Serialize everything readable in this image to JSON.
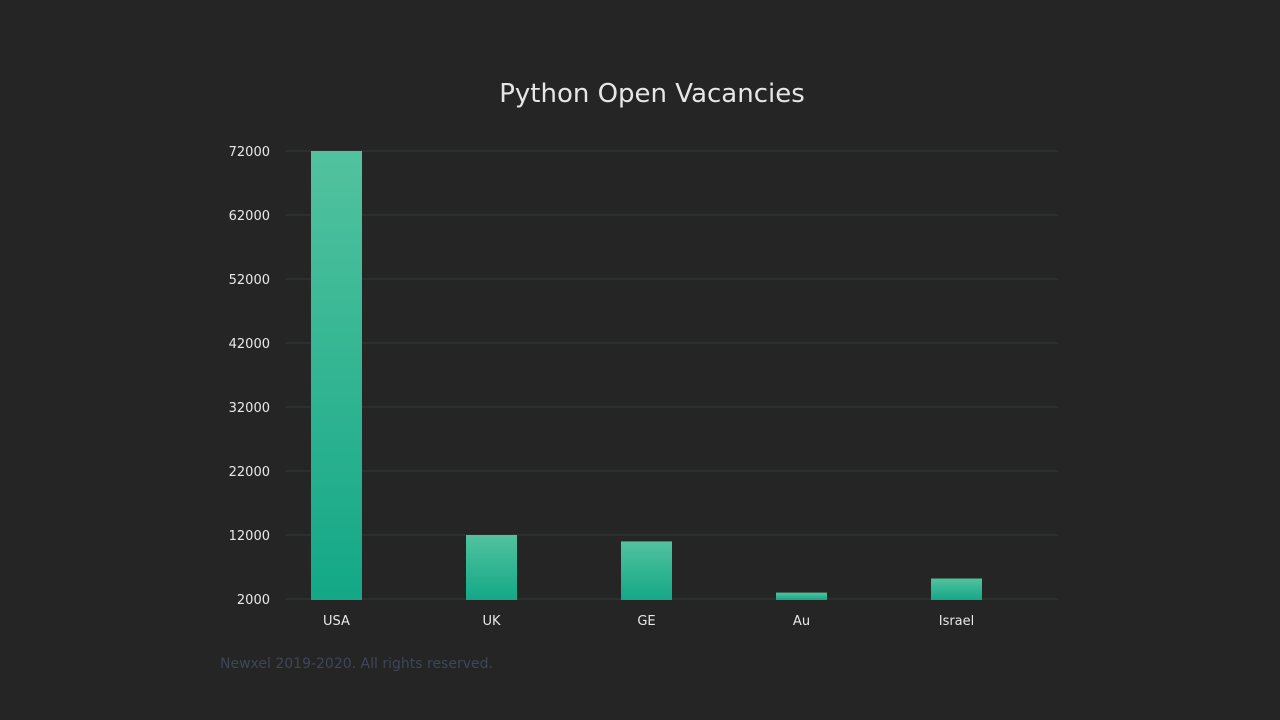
{
  "chart_data": {
    "type": "bar",
    "title": "Python Open Vacancies",
    "categories": [
      "USA",
      "UK",
      "GE",
      "Au",
      "Israel"
    ],
    "values": [
      72000,
      12000,
      11000,
      3000,
      5200
    ],
    "xlabel": "",
    "ylabel": "",
    "ylim": [
      2000,
      72000
    ],
    "yticks": [
      2000,
      12000,
      22000,
      32000,
      42000,
      52000,
      62000,
      72000
    ],
    "grid": true,
    "legend": "none"
  },
  "colors": {
    "background": "#252525",
    "grid": "#2f3b38",
    "bar_top": "#52c29e",
    "bar_bottom": "#13a887",
    "text": "#e8e8e8",
    "footer": "#3e4658"
  },
  "footer": {
    "copyright": "Newxel 2019-2020. All rights reserved."
  }
}
